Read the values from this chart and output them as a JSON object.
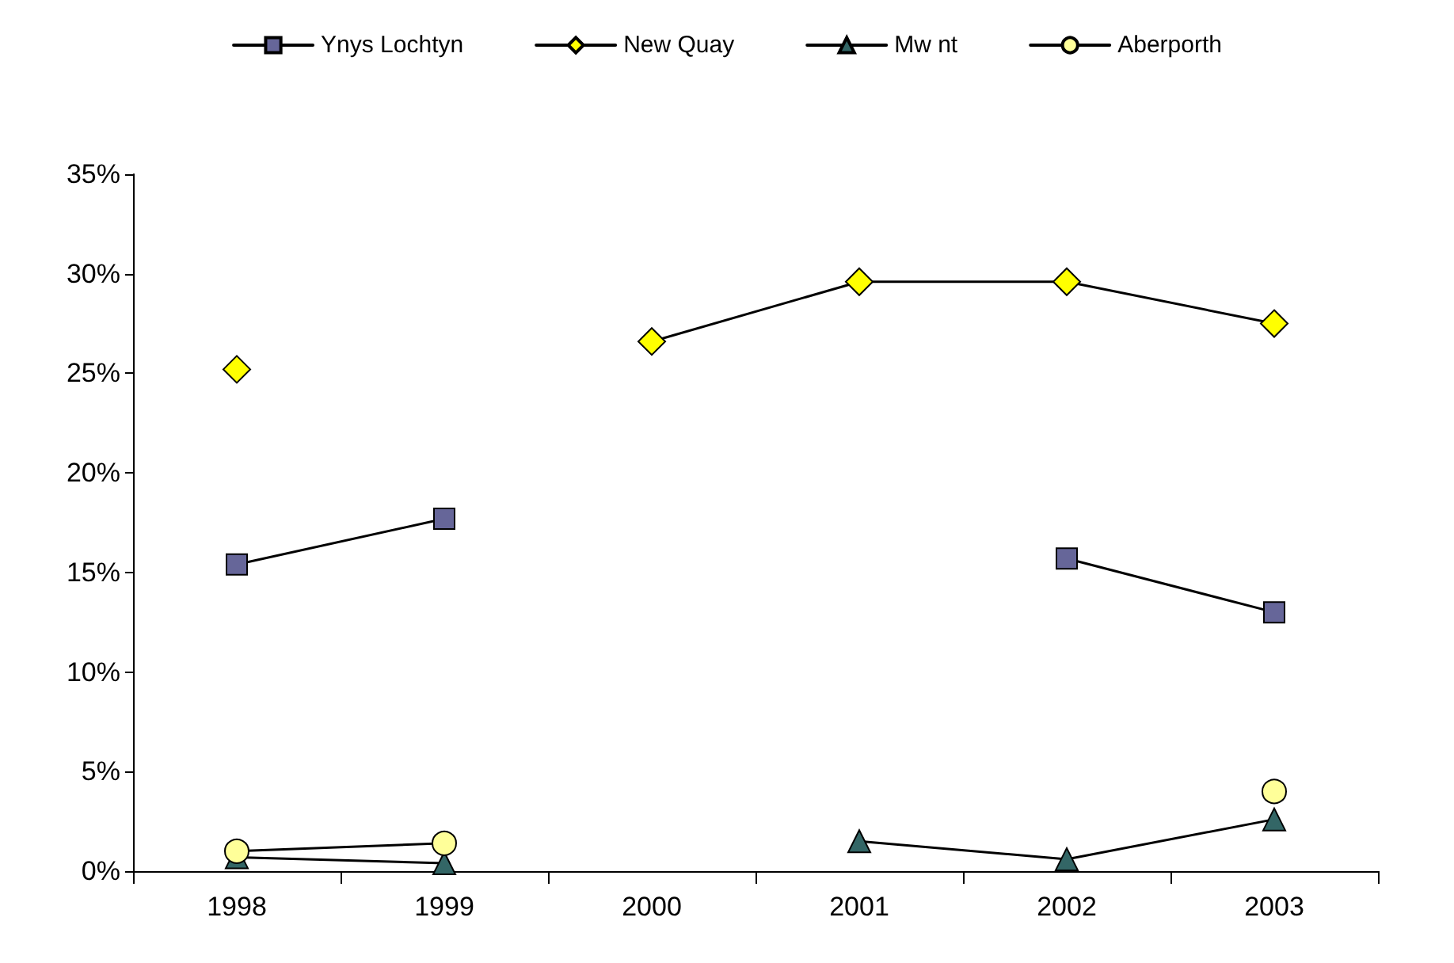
{
  "chart_data": {
    "type": "line",
    "categories": [
      "1998",
      "1999",
      "2000",
      "2001",
      "2002",
      "2003"
    ],
    "series": [
      {
        "name": "Ynys Lochtyn",
        "color": "#666699",
        "marker": "square",
        "values": [
          15.4,
          17.7,
          null,
          null,
          15.7,
          13.0
        ]
      },
      {
        "name": "New Quay",
        "color": "#ffff00",
        "marker": "diamond",
        "values": [
          25.2,
          null,
          26.6,
          29.6,
          29.6,
          27.5
        ]
      },
      {
        "name": "Mw nt",
        "color": "#336666",
        "marker": "triangle",
        "values": [
          0.7,
          0.4,
          null,
          1.5,
          0.6,
          2.6
        ]
      },
      {
        "name": "Aberporth",
        "color": "#ffff99",
        "marker": "circle",
        "values": [
          1.0,
          1.4,
          null,
          null,
          null,
          4.0
        ]
      }
    ],
    "ylim": [
      0,
      35
    ],
    "yticks": [
      {
        "value": 0,
        "label": "0%"
      },
      {
        "value": 5,
        "label": "5%"
      },
      {
        "value": 10,
        "label": "10%"
      },
      {
        "value": 15,
        "label": "15%"
      },
      {
        "value": 20,
        "label": "20%"
      },
      {
        "value": 25,
        "label": "25%"
      },
      {
        "value": 30,
        "label": "30%"
      },
      {
        "value": 35,
        "label": "35%"
      }
    ],
    "grid": false,
    "legend": "top",
    "line_style": "solid"
  }
}
